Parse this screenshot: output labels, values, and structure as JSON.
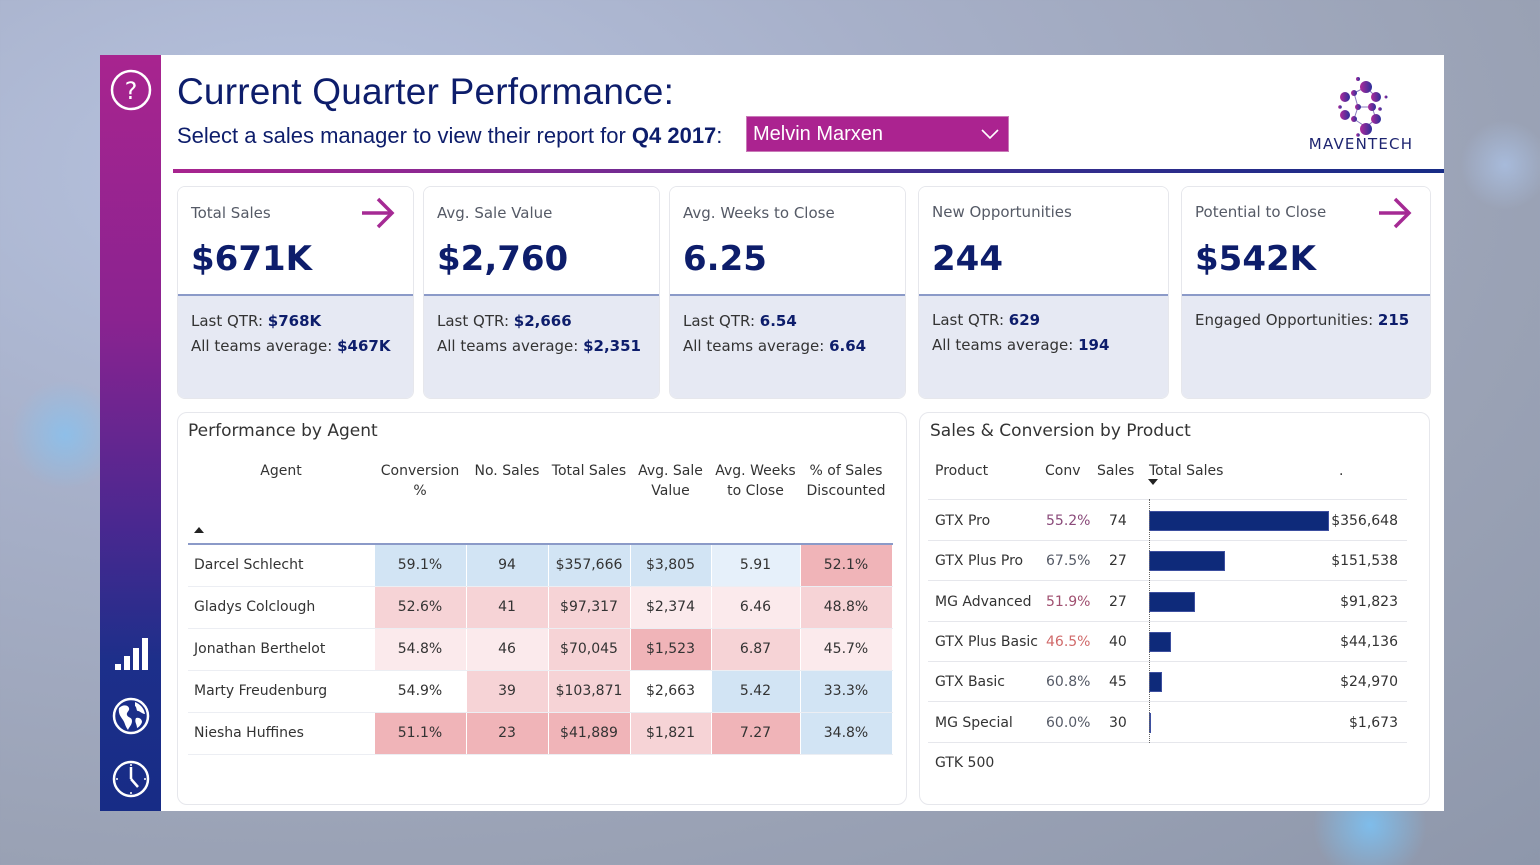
{
  "header": {
    "title": "Current Quarter Performance:",
    "subtitle_prefix": "Select a sales manager to view their report for ",
    "subtitle_period": "Q4 2017",
    "subtitle_suffix": ":",
    "manager_dropdown": {
      "selected": "Melvin Marxen"
    },
    "logo_text": "MAVENTECH"
  },
  "sidebar": {
    "icons": [
      "help-icon",
      "bar-chart-icon",
      "globe-icon",
      "clock-icon"
    ]
  },
  "colors": {
    "brand_magenta": "#ab2390",
    "brand_navy": "#0d1d6b",
    "bar": "#0e2a7a",
    "heat_high": "#f0b4b8",
    "heat_mid_red": "#f6d3d6",
    "heat_light_red": "#fbeaec",
    "heat_neutral": "#ffffff",
    "heat_light_blue": "#e6f0fa",
    "heat_blue": "#d2e4f4"
  },
  "kpis": [
    {
      "label": "Total Sales",
      "value": "$671K",
      "has_arrow": true,
      "lines": [
        {
          "label": "Last QTR: ",
          "value": "$768K"
        },
        {
          "label": "All teams average: ",
          "value": "$467K"
        }
      ]
    },
    {
      "label": "Avg. Sale Value",
      "value": "$2,760",
      "has_arrow": false,
      "lines": [
        {
          "label": "Last QTR: ",
          "value": "$2,666"
        },
        {
          "label": "All teams average: ",
          "value": "$2,351"
        }
      ]
    },
    {
      "label": "Avg. Weeks to Close",
      "value": "6.25",
      "has_arrow": false,
      "lines": [
        {
          "label": "Last QTR: ",
          "value": "6.54"
        },
        {
          "label": "All teams average: ",
          "value": "6.64"
        }
      ]
    },
    {
      "label": "New Opportunities",
      "value": "244",
      "has_arrow": false,
      "lines": [
        {
          "label": "Last QTR: ",
          "value": "629"
        },
        {
          "label": "All teams average: ",
          "value": "194"
        }
      ]
    },
    {
      "label": "Potential to Close",
      "value": "$542K",
      "has_arrow": true,
      "lines": [
        {
          "label": "Engaged Opportunities: ",
          "value": "215"
        }
      ]
    }
  ],
  "agent_table": {
    "title": "Performance by Agent",
    "columns": [
      "Agent",
      "Conversion %",
      "No. Sales",
      "Total Sales",
      "Avg. Sale Value",
      "Avg. Weeks to Close",
      "% of Sales Discounted"
    ],
    "sort": "Agent ascending",
    "rows": [
      {
        "agent": "Darcel Schlecht",
        "conv": "59.1%",
        "sales": "94",
        "total": "$357,666",
        "avg": "$3,805",
        "weeks": "5.91",
        "disc": "52.1%",
        "heat": [
          "blue",
          "blue",
          "blue",
          "blue",
          "light_blue",
          "high"
        ]
      },
      {
        "agent": "Gladys Colclough",
        "conv": "52.6%",
        "sales": "41",
        "total": "$97,317",
        "avg": "$2,374",
        "weeks": "6.46",
        "disc": "48.8%",
        "heat": [
          "mid_red",
          "mid_red",
          "mid_red",
          "light_red",
          "light_red",
          "mid_red"
        ]
      },
      {
        "agent": "Jonathan Berthelot",
        "conv": "54.8%",
        "sales": "46",
        "total": "$70,045",
        "avg": "$1,523",
        "weeks": "6.87",
        "disc": "45.7%",
        "heat": [
          "light_red",
          "light_red",
          "mid_red",
          "high",
          "mid_red",
          "light_red"
        ]
      },
      {
        "agent": "Marty Freudenburg",
        "conv": "54.9%",
        "sales": "39",
        "total": "$103,871",
        "avg": "$2,663",
        "weeks": "5.42",
        "disc": "33.3%",
        "heat": [
          "neutral",
          "mid_red",
          "mid_red",
          "neutral",
          "blue",
          "blue"
        ]
      },
      {
        "agent": "Niesha Huffines",
        "conv": "51.1%",
        "sales": "23",
        "total": "$41,889",
        "avg": "$1,821",
        "weeks": "7.27",
        "disc": "34.8%",
        "heat": [
          "high",
          "high",
          "high",
          "mid_red",
          "high",
          "blue"
        ]
      }
    ]
  },
  "product_table": {
    "title": "Sales & Conversion by Product",
    "columns": [
      "Product",
      "Conv",
      "Sales",
      "Total Sales",
      "."
    ],
    "sort": "Total Sales descending",
    "rows": [
      {
        "product": "GTX Pro",
        "conv": "55.2%",
        "conv_color": "#8a4a7a",
        "sales": "74",
        "total_label": "$356,648",
        "total": 356648
      },
      {
        "product": "GTX Plus Pro",
        "conv": "67.5%",
        "conv_color": "#555a66",
        "sales": "27",
        "total_label": "$151,538",
        "total": 151538
      },
      {
        "product": "MG Advanced",
        "conv": "51.9%",
        "conv_color": "#a05070",
        "sales": "27",
        "total_label": "$91,823",
        "total": 91823
      },
      {
        "product": "GTX Plus Basic",
        "conv": "46.5%",
        "conv_color": "#d06a6a",
        "sales": "40",
        "total_label": "$44,136",
        "total": 44136
      },
      {
        "product": "GTX Basic",
        "conv": "60.8%",
        "conv_color": "#555a66",
        "sales": "45",
        "total_label": "$24,970",
        "total": 24970
      },
      {
        "product": "MG Special",
        "conv": "60.0%",
        "conv_color": "#555a66",
        "sales": "30",
        "total_label": "$1,673",
        "total": 1673
      },
      {
        "product": "GTK 500",
        "conv": "",
        "conv_color": "#555a66",
        "sales": "",
        "total_label": "",
        "total": 0
      }
    ]
  },
  "chart_data": {
    "type": "bar",
    "title": "Sales & Conversion by Product",
    "orientation": "horizontal",
    "categories": [
      "GTX Pro",
      "GTX Plus Pro",
      "MG Advanced",
      "GTX Plus Basic",
      "GTX Basic",
      "MG Special",
      "GTK 500"
    ],
    "values": [
      356648,
      151538,
      91823,
      44136,
      24970,
      1673,
      0
    ],
    "xlabel": "Total Sales",
    "ylabel": "Product"
  }
}
